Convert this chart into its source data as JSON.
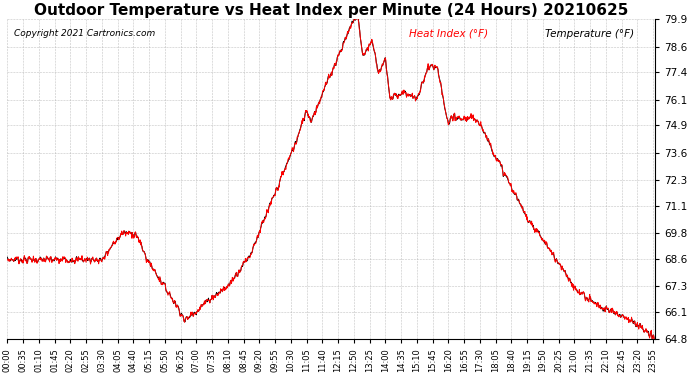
{
  "title": "Outdoor Temperature vs Heat Index per Minute (24 Hours) 20210625",
  "copyright": "Copyright 2021 Cartronics.com",
  "legend_labels": [
    "Heat Index (°F)",
    "Temperature (°F)"
  ],
  "legend_colors": [
    "red",
    "black"
  ],
  "ylim": [
    64.8,
    79.9
  ],
  "yticks": [
    64.8,
    66.1,
    67.3,
    68.6,
    69.8,
    71.1,
    72.3,
    73.6,
    74.9,
    76.1,
    77.4,
    78.6,
    79.9
  ],
  "background_color": "#ffffff",
  "grid_color": "#aaaaaa",
  "title_fontsize": 11,
  "line_color_heat": "red",
  "line_color_temp": "black",
  "xtick_interval": 35
}
